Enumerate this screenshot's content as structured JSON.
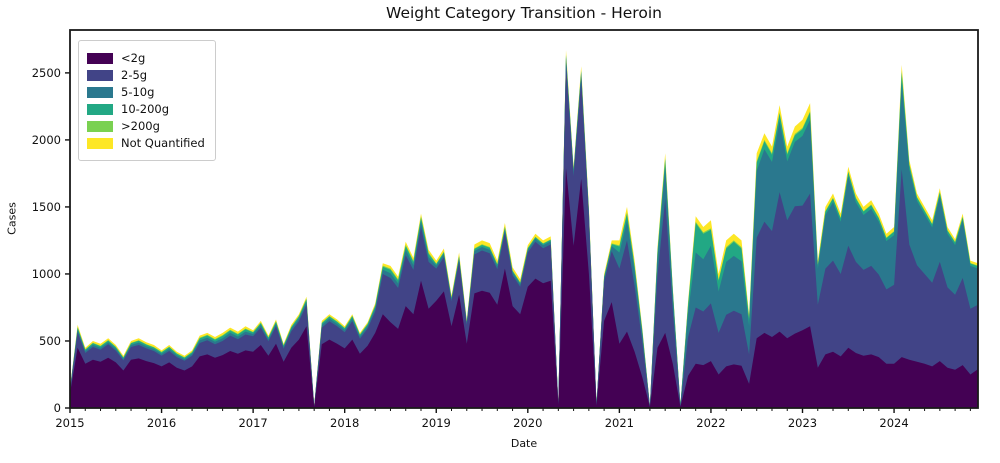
{
  "title": "Weight Category Transition - Heroin",
  "xlabel": "Date",
  "ylabel": "Cases",
  "chart_data": {
    "type": "area",
    "stacked": true,
    "title": "Weight Category Transition - Heroin",
    "xlabel": "Date",
    "ylabel": "Cases",
    "x_start": "2015-01",
    "x_step": "monthly",
    "x_tick_labels": [
      "2015",
      "2016",
      "2017",
      "2018",
      "2019",
      "2020",
      "2021",
      "2022",
      "2023",
      "2024"
    ],
    "y_ticks": [
      0,
      500,
      1000,
      1500,
      2000,
      2500
    ],
    "ylim": [
      0,
      2820
    ],
    "grid": false,
    "legend_position": "upper left",
    "series": [
      {
        "name": "<2g",
        "color": "#440154",
        "values": [
          110,
          450,
          330,
          360,
          345,
          375,
          340,
          280,
          360,
          370,
          350,
          335,
          310,
          340,
          300,
          280,
          310,
          385,
          400,
          375,
          395,
          425,
          405,
          430,
          420,
          470,
          390,
          480,
          345,
          450,
          510,
          610,
          8,
          475,
          510,
          480,
          445,
          510,
          405,
          465,
          560,
          700,
          640,
          590,
          760,
          700,
          950,
          740,
          800,
          870,
          610,
          845,
          480,
          855,
          875,
          860,
          770,
          1040,
          760,
          700,
          905,
          965,
          930,
          950,
          25,
          1790,
          1210,
          1710,
          1000,
          18,
          650,
          790,
          480,
          570,
          420,
          230,
          8,
          450,
          560,
          330,
          9,
          240,
          330,
          320,
          350,
          250,
          310,
          325,
          315,
          180,
          520,
          560,
          530,
          570,
          520,
          555,
          580,
          610,
          300,
          400,
          420,
          385,
          450,
          410,
          390,
          400,
          380,
          330,
          330,
          380,
          360,
          345,
          330,
          310,
          350,
          300,
          285,
          320,
          250,
          290
        ]
      },
      {
        "name": "2-5g",
        "color": "#414487",
        "values": [
          25,
          115,
          80,
          95,
          90,
          100,
          88,
          75,
          95,
          100,
          95,
          90,
          80,
          85,
          80,
          72,
          80,
          100,
          105,
          100,
          105,
          115,
          108,
          118,
          115,
          130,
          108,
          130,
          97,
          122,
          137,
          160,
          5,
          125,
          137,
          130,
          120,
          138,
          112,
          128,
          160,
          300,
          330,
          305,
          380,
          330,
          400,
          350,
          240,
          255,
          185,
          250,
          140,
          290,
          300,
          295,
          265,
          270,
          230,
          205,
          255,
          275,
          262,
          270,
          9,
          775,
          520,
          740,
          430,
          7,
          290,
          380,
          560,
          680,
          490,
          265,
          6,
          540,
          1000,
          400,
          8,
          290,
          420,
          400,
          430,
          310,
          385,
          400,
          385,
          220,
          750,
          830,
          790,
          1040,
          880,
          950,
          930,
          990,
          470,
          640,
          680,
          615,
          760,
          680,
          640,
          660,
          615,
          555,
          590,
          1400,
          860,
          720,
          670,
          625,
          740,
          600,
          560,
          650,
          490,
          480
        ]
      },
      {
        "name": "5-10g",
        "color": "#2a788e",
        "values": [
          5,
          20,
          15,
          16,
          15,
          16,
          15,
          12,
          16,
          18,
          16,
          15,
          14,
          16,
          14,
          13,
          14,
          19,
          20,
          19,
          21,
          22,
          20,
          22,
          17,
          19,
          16,
          19,
          14,
          18,
          20,
          24,
          2,
          19,
          21,
          19,
          18,
          21,
          17,
          19,
          24,
          32,
          36,
          34,
          40,
          36,
          42,
          36,
          22,
          24,
          17,
          23,
          14,
          26,
          26,
          26,
          23,
          24,
          21,
          19,
          21,
          23,
          22,
          23,
          2,
          53,
          36,
          50,
          30,
          2,
          28,
          38,
          120,
          150,
          110,
          60,
          3,
          130,
          240,
          110,
          4,
          180,
          410,
          390,
          430,
          310,
          395,
          410,
          395,
          215,
          500,
          540,
          515,
          530,
          440,
          480,
          520,
          550,
          270,
          400,
          435,
          390,
          520,
          445,
          410,
          425,
          395,
          360,
          370,
          650,
          560,
          480,
          445,
          412,
          490,
          400,
          370,
          430,
          320,
          270
        ]
      },
      {
        "name": "10-200g",
        "color": "#22a884",
        "values": [
          4,
          15,
          10,
          12,
          11,
          12,
          11,
          9,
          12,
          13,
          12,
          11,
          11,
          13,
          11,
          10,
          11,
          15,
          16,
          15,
          17,
          16,
          15,
          17,
          12,
          14,
          11,
          14,
          10,
          13,
          15,
          17,
          1,
          13,
          14,
          13,
          12,
          15,
          12,
          13,
          17,
          22,
          25,
          23,
          28,
          24,
          28,
          24,
          12,
          13,
          9,
          13,
          8,
          15,
          15,
          15,
          13,
          14,
          11,
          10,
          10,
          11,
          11,
          11,
          1,
          13,
          9,
          13,
          10,
          1,
          10,
          15,
          45,
          50,
          38,
          22,
          1,
          45,
          55,
          38,
          2,
          60,
          220,
          190,
          120,
          80,
          100,
          105,
          95,
          50,
          60,
          60,
          55,
          55,
          50,
          50,
          50,
          55,
          25,
          25,
          28,
          25,
          30,
          28,
          25,
          28,
          25,
          22,
          25,
          70,
          35,
          25,
          25,
          23,
          28,
          22,
          20,
          23,
          18,
          18
        ]
      },
      {
        "name": ">200g",
        "color": "#7ad151",
        "values": [
          2,
          5,
          4,
          4,
          4,
          4,
          4,
          3,
          4,
          5,
          4,
          4,
          4,
          4,
          4,
          4,
          4,
          6,
          6,
          6,
          6,
          6,
          6,
          6,
          4,
          5,
          4,
          5,
          3,
          4,
          5,
          6,
          1,
          5,
          5,
          5,
          4,
          5,
          4,
          5,
          6,
          8,
          9,
          8,
          10,
          9,
          10,
          9,
          4,
          5,
          3,
          4,
          3,
          5,
          5,
          5,
          4,
          5,
          4,
          4,
          4,
          4,
          4,
          4,
          0,
          5,
          4,
          5,
          4,
          0,
          3,
          5,
          8,
          10,
          7,
          4,
          0,
          8,
          10,
          6,
          0,
          8,
          10,
          10,
          10,
          8,
          10,
          10,
          10,
          7,
          10,
          10,
          10,
          10,
          10,
          10,
          10,
          10,
          5,
          5,
          5,
          5,
          6,
          5,
          5,
          5,
          5,
          5,
          5,
          15,
          7,
          5,
          5,
          5,
          6,
          5,
          5,
          5,
          4,
          4
        ]
      },
      {
        "name": "Not Quantified",
        "color": "#fde725",
        "values": [
          4,
          15,
          11,
          13,
          15,
          13,
          12,
          11,
          13,
          14,
          13,
          15,
          11,
          12,
          11,
          11,
          11,
          15,
          13,
          15,
          16,
          16,
          16,
          17,
          12,
          12,
          11,
          12,
          11,
          13,
          13,
          13,
          3,
          13,
          13,
          13,
          11,
          11,
          10,
          10,
          13,
          18,
          20,
          20,
          22,
          21,
          20,
          21,
          22,
          23,
          16,
          25,
          15,
          29,
          29,
          29,
          25,
          27,
          24,
          22,
          20,
          22,
          21,
          22,
          3,
          34,
          21,
          32,
          26,
          2,
          19,
          22,
          37,
          40,
          35,
          19,
          2,
          27,
          35,
          16,
          2,
          22,
          40,
          40,
          60,
          42,
          50,
          50,
          50,
          28,
          60,
          50,
          50,
          55,
          50,
          55,
          60,
          60,
          30,
          30,
          32,
          30,
          34,
          32,
          30,
          32,
          30,
          28,
          30,
          45,
          28,
          25,
          25,
          25,
          26,
          23,
          20,
          22,
          18,
          18
        ]
      }
    ]
  }
}
